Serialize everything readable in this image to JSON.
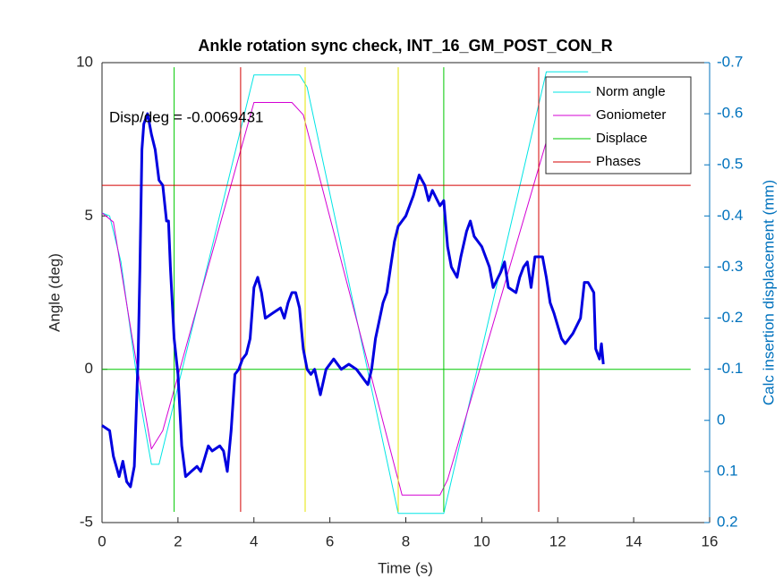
{
  "chart_data": {
    "type": "line",
    "title": "Ankle rotation sync check, INT_16_GM_POST_CON_R",
    "x_label": "Time (s)",
    "y_label": "Angle (deg)",
    "y2_label": "Calc insertion displacement (mm)",
    "annotation": "Disp/deg = -0.0069431",
    "xlim": [
      0,
      16
    ],
    "xticks": [
      0,
      2,
      4,
      6,
      8,
      10,
      12,
      14,
      16
    ],
    "ylim": [
      -5,
      10
    ],
    "yticks": [
      -5,
      0,
      5,
      10
    ],
    "y2lim": [
      0.2,
      -0.7
    ],
    "y2ticks": [
      0.2,
      0.1,
      0,
      -0.1,
      -0.2,
      -0.3,
      -0.4,
      -0.5,
      -0.6,
      -0.7
    ],
    "legend_position": "northeast",
    "series": [
      {
        "name": "Norm angle",
        "color": "#00e5e5",
        "width": 1,
        "x": [
          0,
          0.2,
          0.5,
          1.0,
          1.3,
          1.5,
          1.6,
          4.0,
          5.2,
          5.4,
          7.8,
          9.0,
          11.7,
          12.8
        ],
        "values": [
          5.1,
          5.0,
          3.5,
          -1,
          -3.1,
          -3.1,
          -2.6,
          9.6,
          9.6,
          9.2,
          -4.7,
          -4.7,
          9.7,
          9.7
        ]
      },
      {
        "name": "Goniometer",
        "color": "#d400d4",
        "width": 1,
        "x": [
          0,
          0.3,
          0.8,
          1.3,
          1.6,
          4.0,
          5.0,
          5.3,
          7.9,
          8.9,
          9.1,
          12.0
        ],
        "values": [
          5.1,
          4.8,
          1,
          -2.6,
          -2,
          8.7,
          8.7,
          8.3,
          -4.1,
          -4.1,
          -3.6,
          8.7
        ]
      },
      {
        "name": "Displace",
        "color": "#00c800",
        "width": 1,
        "x": [
          1.9,
          1.9,
          null,
          9.0,
          9.0,
          null,
          0,
          15.5
        ],
        "values": [
          -4.65,
          9.85,
          null,
          -4.65,
          9.85,
          null,
          0,
          0
        ]
      },
      {
        "name": "Phases",
        "color": "#d40000",
        "width": 1,
        "x": [
          3.65,
          3.65,
          null,
          11.5,
          11.5,
          null,
          0,
          15.5
        ],
        "values": [
          -4.65,
          9.85,
          null,
          -4.65,
          9.85,
          null,
          6,
          6
        ]
      },
      {
        "color": "#e5e500",
        "width": 1,
        "x": [
          5.35,
          5.35,
          null,
          7.8,
          7.8
        ],
        "values": [
          -4.65,
          9.85,
          null,
          -4.65,
          9.85
        ]
      },
      {
        "color": "#0000e0",
        "width": 3,
        "axis": "y2",
        "x": [
          0,
          0.2,
          0.3,
          0.45,
          0.55,
          0.65,
          0.75,
          0.85,
          0.95,
          1.0,
          1.05,
          1.1,
          1.2,
          1.3,
          1.4,
          1.5,
          1.6,
          1.7,
          1.75,
          1.8,
          1.9,
          2.0,
          2.1,
          2.2,
          2.35,
          2.5,
          2.6,
          2.8,
          2.9,
          3.1,
          3.2,
          3.3,
          3.4,
          3.5,
          3.6,
          3.7,
          3.8,
          3.9,
          4.0,
          4.1,
          4.2,
          4.3,
          4.5,
          4.7,
          4.8,
          4.9,
          5.0,
          5.1,
          5.2,
          5.3,
          5.4,
          5.5,
          5.6,
          5.75,
          5.9,
          6.1,
          6.3,
          6.5,
          6.7,
          6.9,
          7.0,
          7.1,
          7.2,
          7.4,
          7.5,
          7.6,
          7.7,
          7.8,
          7.9,
          8.0,
          8.2,
          8.35,
          8.5,
          8.6,
          8.7,
          8.9,
          9.0,
          9.1,
          9.2,
          9.35,
          9.45,
          9.6,
          9.7,
          9.8,
          10.0,
          10.2,
          10.3,
          10.5,
          10.6,
          10.7,
          10.9,
          11.0,
          11.1,
          11.2,
          11.3,
          11.4,
          11.6,
          11.7,
          11.8,
          11.9,
          12.1,
          12.2,
          12.4,
          12.6,
          12.7,
          12.8,
          12.95,
          13.0,
          13.1,
          13.15,
          13.2
        ],
        "values": [
          0.01,
          0.02,
          0.07,
          0.11,
          0.08,
          0.12,
          0.13,
          0.09,
          -0.12,
          -0.3,
          -0.53,
          -0.58,
          -0.6,
          -0.56,
          -0.53,
          -0.47,
          -0.46,
          -0.39,
          -0.39,
          -0.3,
          -0.16,
          -0.09,
          0.05,
          0.11,
          0.1,
          0.09,
          0.1,
          0.05,
          0.06,
          0.05,
          0.06,
          0.1,
          0.02,
          -0.09,
          -0.1,
          -0.12,
          -0.13,
          -0.16,
          -0.26,
          -0.28,
          -0.25,
          -0.2,
          -0.21,
          -0.22,
          -0.2,
          -0.23,
          -0.25,
          -0.25,
          -0.22,
          -0.14,
          -0.1,
          -0.09,
          -0.1,
          -0.05,
          -0.1,
          -0.12,
          -0.1,
          -0.11,
          -0.1,
          -0.08,
          -0.07,
          -0.1,
          -0.16,
          -0.23,
          -0.25,
          -0.3,
          -0.35,
          -0.38,
          -0.39,
          -0.4,
          -0.44,
          -0.48,
          -0.46,
          -0.43,
          -0.45,
          -0.42,
          -0.43,
          -0.34,
          -0.3,
          -0.28,
          -0.32,
          -0.37,
          -0.39,
          -0.36,
          -0.34,
          -0.3,
          -0.26,
          -0.29,
          -0.31,
          -0.26,
          -0.25,
          -0.28,
          -0.3,
          -0.31,
          -0.26,
          -0.32,
          -0.32,
          -0.28,
          -0.23,
          -0.21,
          -0.16,
          -0.15,
          -0.17,
          -0.2,
          -0.27,
          -0.27,
          -0.25,
          -0.14,
          -0.12,
          -0.15,
          -0.11
        ]
      }
    ]
  }
}
